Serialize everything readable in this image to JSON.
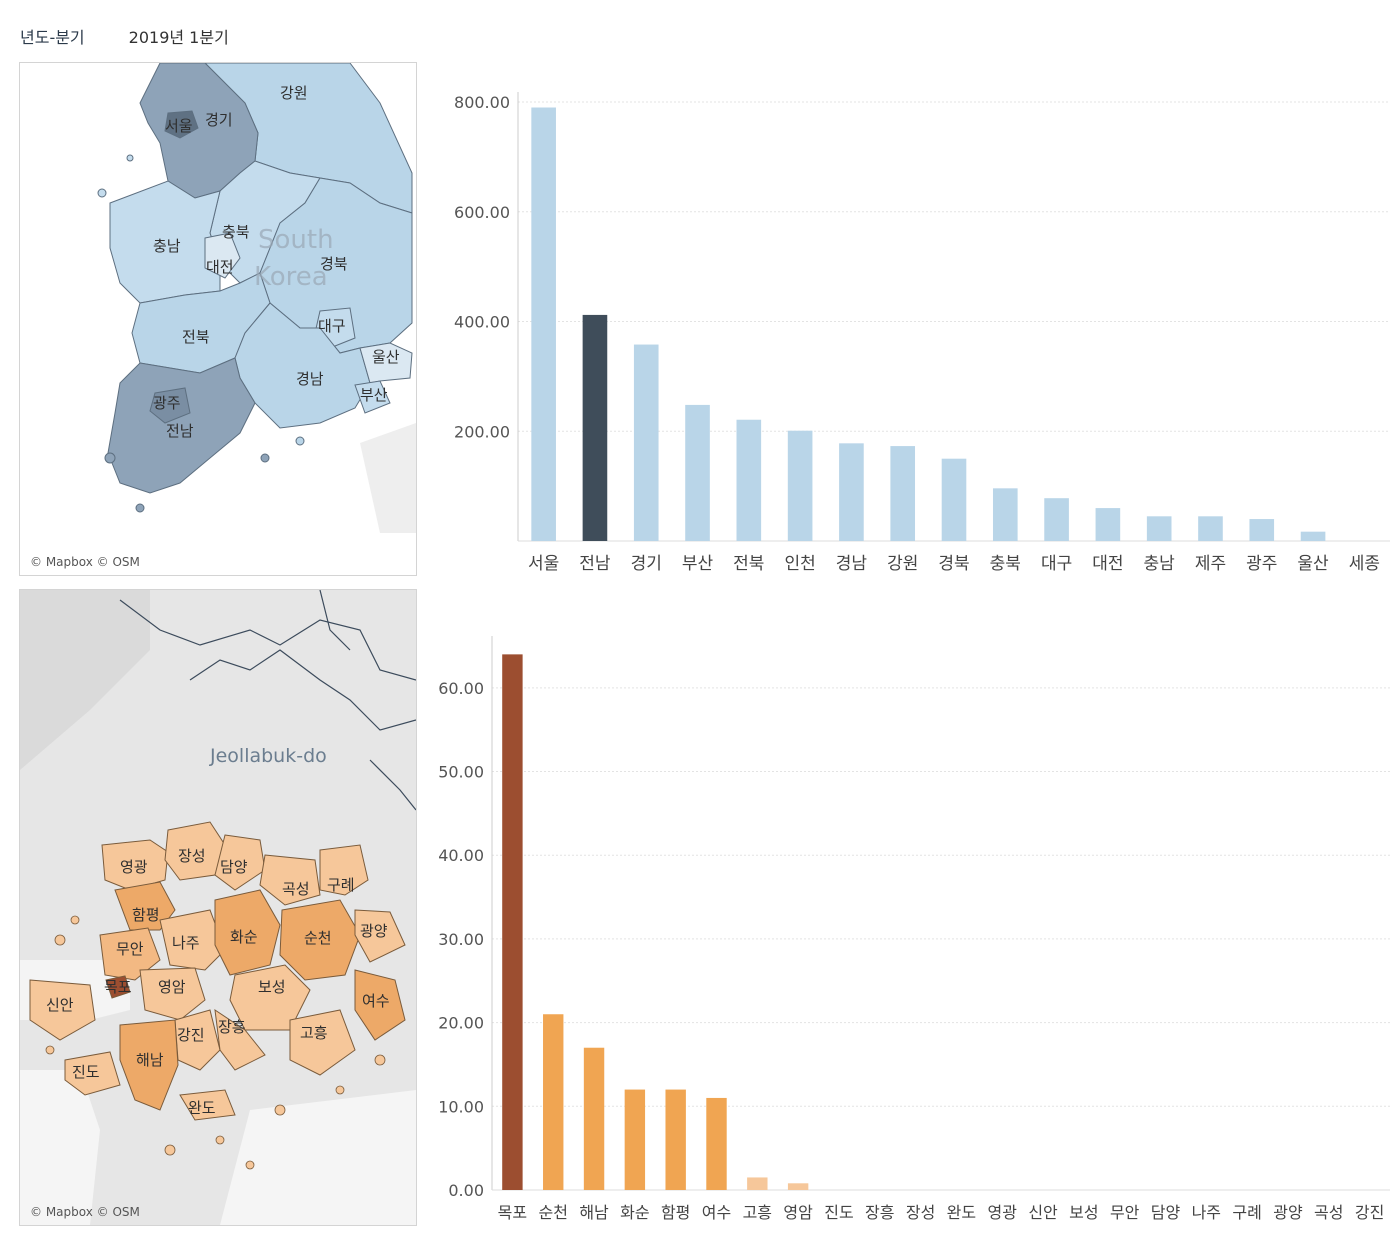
{
  "filter": {
    "label": "년도-분기",
    "value": "2019년 1분기"
  },
  "maps": {
    "top": {
      "credit": "© Mapbox © OSM",
      "country_label_1": "South",
      "country_label_2": "Korea",
      "regions": [
        "서울",
        "경기",
        "강원",
        "충북",
        "충남",
        "대전",
        "경북",
        "대구",
        "전북",
        "울산",
        "경남",
        "부산",
        "광주",
        "전남"
      ]
    },
    "bottom": {
      "credit": "© Mapbox © OSM",
      "province_label": "Jeollabuk-do",
      "regions": [
        "영광",
        "장성",
        "담양",
        "곡성",
        "구례",
        "함평",
        "무안",
        "나주",
        "화순",
        "순천",
        "광양",
        "목포",
        "영암",
        "보성",
        "여수",
        "신안",
        "강진",
        "장흥",
        "고흥",
        "진도",
        "해남",
        "완도"
      ]
    }
  },
  "colors": {
    "top_default": "#b9d5e8",
    "top_highlight": "#3f4d5a",
    "bottom_default": "#f0a552",
    "bottom_highlight": "#9c4e30",
    "bottom_light": "#f6c79a",
    "grid": "#e3e3e3",
    "axis_text": "#555555"
  },
  "chart_data": [
    {
      "type": "bar",
      "title": "",
      "xlabel": "",
      "ylabel": "",
      "ylim": [
        0,
        800
      ],
      "yticks": [
        "200.00",
        "400.00",
        "600.00",
        "800.00"
      ],
      "categories": [
        "서울",
        "전남",
        "경기",
        "부산",
        "전북",
        "인천",
        "경남",
        "강원",
        "경북",
        "충북",
        "대구",
        "대전",
        "충남",
        "제주",
        "광주",
        "울산",
        "세종"
      ],
      "values": [
        790,
        412,
        358,
        248,
        221,
        201,
        178,
        173,
        150,
        96,
        78,
        60,
        45,
        45,
        40,
        17,
        0
      ],
      "highlight": "전남",
      "grid": true
    },
    {
      "type": "bar",
      "title": "",
      "xlabel": "",
      "ylabel": "",
      "ylim": [
        0,
        65
      ],
      "yticks": [
        "0.00",
        "10.00",
        "20.00",
        "30.00",
        "40.00",
        "50.00",
        "60.00"
      ],
      "categories": [
        "목포",
        "순천",
        "해남",
        "화순",
        "함평",
        "여수",
        "고흥",
        "영암",
        "진도",
        "장흥",
        "장성",
        "완도",
        "영광",
        "신안",
        "보성",
        "무안",
        "담양",
        "나주",
        "구례",
        "광양",
        "곡성",
        "강진"
      ],
      "values": [
        64,
        21,
        17,
        12,
        12,
        11,
        1.5,
        0.8,
        0,
        0,
        0,
        0,
        0,
        0,
        0,
        0,
        0,
        0,
        0,
        0,
        0,
        0
      ],
      "highlight": "목포",
      "grid": true
    }
  ]
}
